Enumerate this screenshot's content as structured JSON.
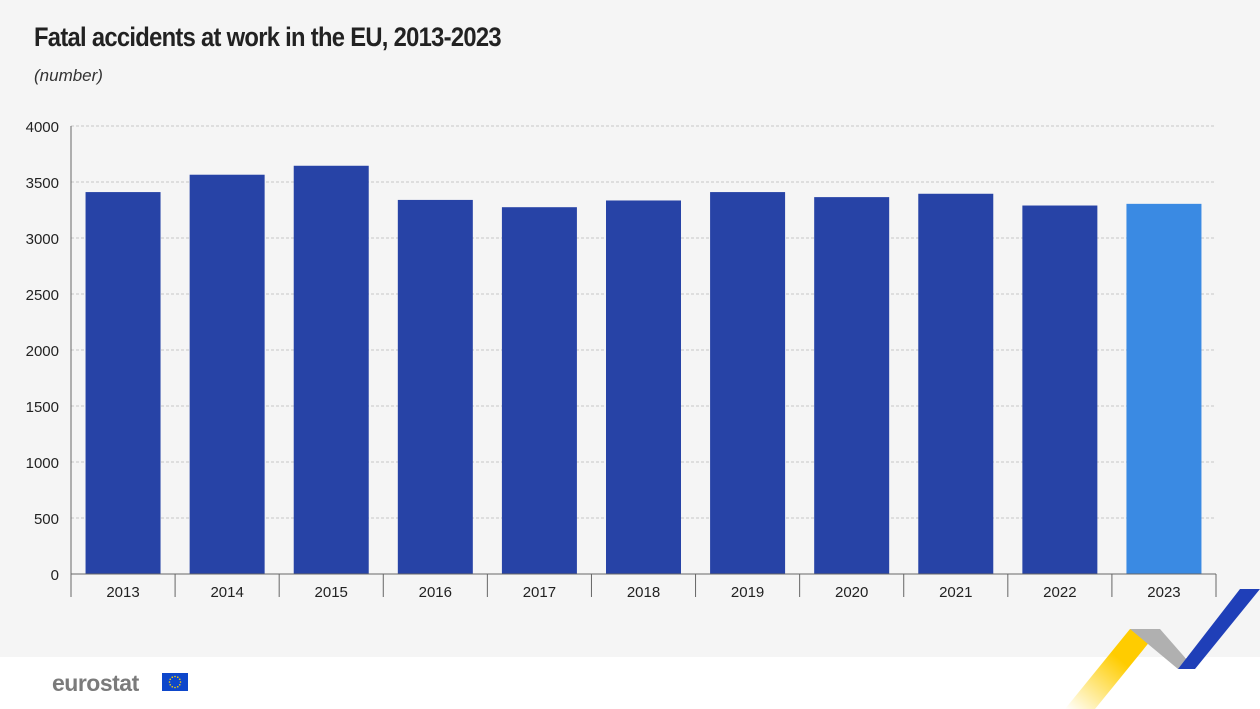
{
  "header": {
    "title": "Fatal accidents at work in the EU, 2013-2023",
    "subtitle": "(number)"
  },
  "footer": {
    "logo_text": "eurostat"
  },
  "colors": {
    "bar": "#2743a6",
    "highlight_bar": "#3a8ae3",
    "background": "#f5f5f5"
  },
  "chart_data": {
    "type": "bar",
    "title": "Fatal accidents at work in the EU, 2013-2023",
    "subtitle": "(number)",
    "categories": [
      "2013",
      "2014",
      "2015",
      "2016",
      "2017",
      "2018",
      "2019",
      "2020",
      "2021",
      "2022",
      "2023"
    ],
    "values": [
      3410,
      3565,
      3645,
      3340,
      3275,
      3335,
      3410,
      3365,
      3395,
      3290,
      3305
    ],
    "highlight": "2023",
    "ylim": [
      0,
      4000
    ],
    "yticks": [
      0,
      500,
      1000,
      1500,
      2000,
      2500,
      3000,
      3500,
      4000
    ],
    "grid": true,
    "xlabel": "",
    "ylabel": ""
  }
}
